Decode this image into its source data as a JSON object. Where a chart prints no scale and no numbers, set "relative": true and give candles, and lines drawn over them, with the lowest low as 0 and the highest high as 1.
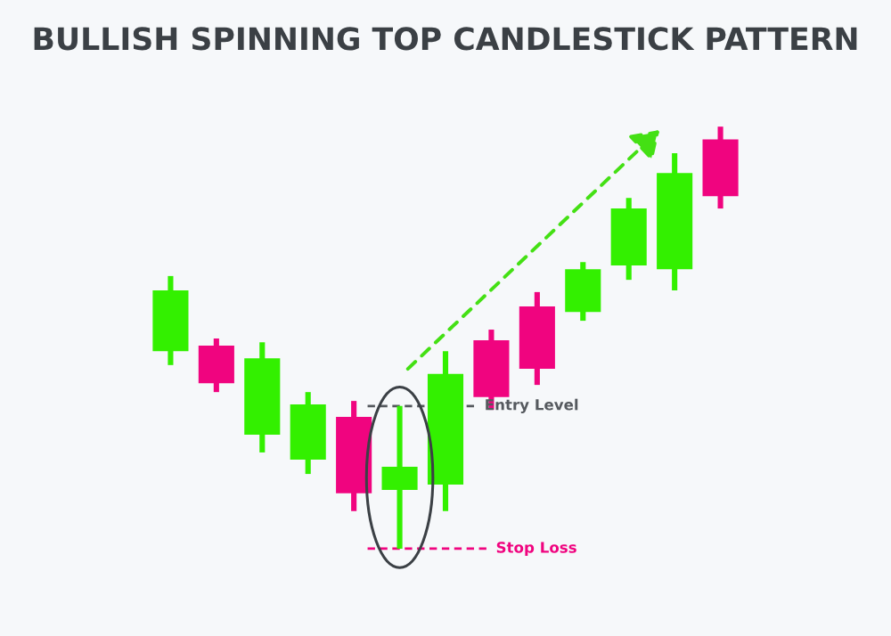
{
  "chart_data": {
    "type": "candlestick",
    "title": "BULLISH SPINNING TOP CANDLESTICK PATTERN",
    "relative": true,
    "categories": [
      null,
      null,
      null,
      null,
      null,
      null,
      null,
      null,
      null,
      null,
      null,
      null,
      null
    ],
    "ohlc": [
      [
        0.468,
        0.646,
        0.435,
        0.612
      ],
      [
        0.481,
        0.498,
        0.371,
        0.392
      ],
      [
        0.27,
        0.489,
        0.228,
        0.451
      ],
      [
        0.211,
        0.371,
        0.177,
        0.342
      ],
      [
        0.312,
        0.35,
        0.089,
        0.131
      ],
      [
        0.139,
        0.338,
        0.0,
        0.194
      ],
      [
        0.152,
        0.468,
        0.089,
        0.414
      ],
      [
        0.494,
        0.519,
        0.329,
        0.359
      ],
      [
        0.574,
        0.608,
        0.388,
        0.426
      ],
      [
        0.561,
        0.679,
        0.54,
        0.662
      ],
      [
        0.671,
        0.831,
        0.637,
        0.806
      ],
      [
        0.662,
        0.937,
        0.612,
        0.89
      ],
      [
        0.97,
        1.0,
        0.806,
        0.835
      ]
    ],
    "colors": [
      "#33f000",
      "#f0047f",
      "#33f000",
      "#33f000",
      "#f0047f",
      "#33f000",
      "#33f000",
      "#f0047f",
      "#f0047f",
      "#33f000",
      "#33f000",
      "#33f000",
      "#f0047f"
    ],
    "ref_lines": [
      {
        "axis": "y",
        "value": 0.338,
        "label": "Entry Level",
        "color": "#55595e",
        "line_style": "dashed"
      },
      {
        "axis": "y",
        "value": 0.0,
        "label": "Stop Loss",
        "color": "#f0047f",
        "line_style": "dashed"
      }
    ]
  }
}
